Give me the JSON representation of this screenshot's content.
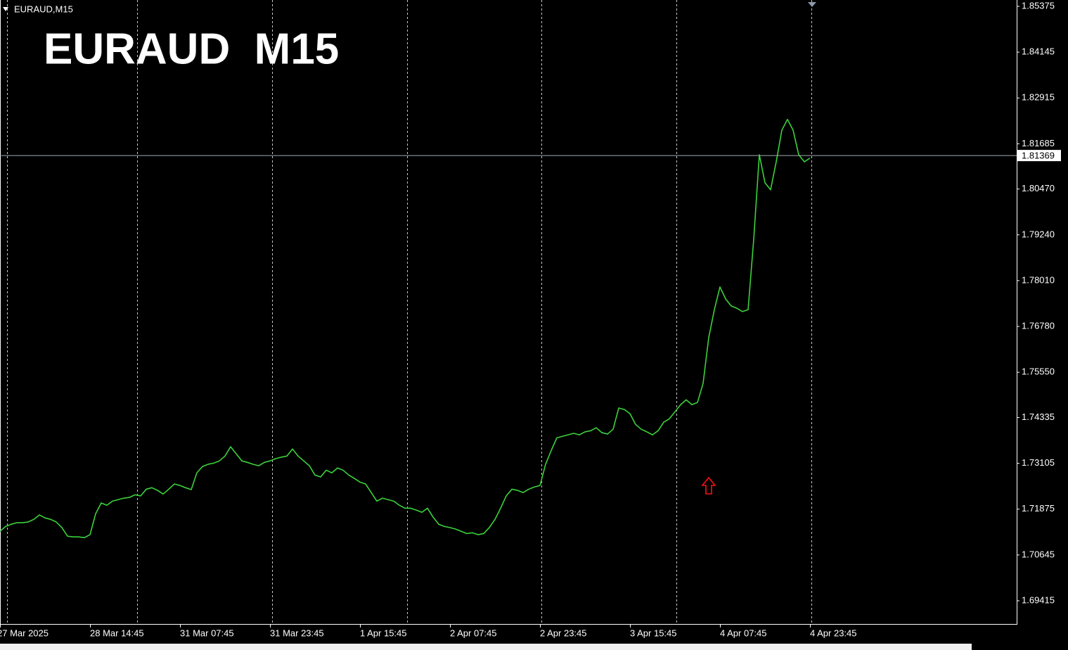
{
  "chart_data": {
    "type": "line",
    "symbol_label": "EURAUD,M15",
    "title": "EURAUD  M15",
    "color": "#3bd13b",
    "title_color": "#4cf01a",
    "ylim": [
      1.68792,
      1.85545
    ],
    "yticks": [
      1.85375,
      1.84145,
      1.82915,
      1.81685,
      {
        "value": 1.8047,
        "label": "1.80470"
      },
      {
        "value": 1.7924,
        "label": "1.79240"
      },
      {
        "value": 1.7801,
        "label": "1.78010"
      },
      {
        "value": 1.7678,
        "label": "1.76780"
      },
      {
        "value": 1.7555,
        "label": "1.75550"
      },
      1.74335,
      1.73105,
      1.71875,
      1.70645,
      1.69415
    ],
    "current_price": 1.81369,
    "categories": [
      "27 Mar 2025",
      null,
      null,
      null,
      null,
      null,
      null,
      null,
      null,
      null,
      null,
      null,
      null,
      null,
      null,
      null,
      "28 Mar 14:45",
      null,
      null,
      null,
      null,
      null,
      null,
      null,
      null,
      null,
      null,
      null,
      null,
      null,
      null,
      null,
      "31 Mar 07:45",
      null,
      null,
      null,
      null,
      null,
      null,
      null,
      null,
      null,
      null,
      null,
      null,
      null,
      null,
      null,
      "31 Mar 23:45",
      null,
      null,
      null,
      null,
      null,
      null,
      null,
      null,
      null,
      null,
      null,
      null,
      null,
      null,
      null,
      "1 Apr 15:45",
      null,
      null,
      null,
      null,
      null,
      null,
      null,
      null,
      null,
      null,
      null,
      null,
      null,
      null,
      null,
      "2 Apr 07:45",
      null,
      null,
      null,
      null,
      null,
      null,
      null,
      null,
      null,
      null,
      null,
      null,
      null,
      null,
      null,
      "2 Apr 23:45",
      null,
      null,
      null,
      null,
      null,
      null,
      null,
      null,
      null,
      null,
      null,
      null,
      null,
      null,
      null,
      "3 Apr 15:45",
      null,
      null,
      null,
      null,
      null,
      null,
      null,
      null,
      null,
      null,
      null,
      null,
      null,
      null,
      null,
      "4 Apr 07:45",
      null,
      null,
      null,
      null,
      null,
      null,
      null,
      null,
      null,
      null,
      null,
      null,
      null,
      null,
      null,
      "4 Apr 23:45"
    ],
    "values": [
      1.7128,
      1.7141,
      1.7147,
      1.7151,
      1.7151,
      1.7153,
      1.716,
      1.7172,
      1.7164,
      1.716,
      1.7153,
      1.7138,
      1.7115,
      1.7113,
      1.7113,
      1.7111,
      1.7119,
      1.7175,
      1.7204,
      1.7198,
      1.7209,
      1.7213,
      1.7217,
      1.7219,
      1.7226,
      1.7223,
      1.7241,
      1.7245,
      1.7238,
      1.7228,
      1.7241,
      1.7255,
      1.7251,
      1.7245,
      1.724,
      1.7285,
      1.7302,
      1.7308,
      1.7311,
      1.7317,
      1.733,
      1.7355,
      1.7336,
      1.7317,
      1.7313,
      1.7308,
      1.7304,
      1.7313,
      1.7317,
      1.7323,
      1.7327,
      1.733,
      1.7349,
      1.733,
      1.7317,
      1.7304,
      1.7279,
      1.7274,
      1.7292,
      1.7285,
      1.7298,
      1.7292,
      1.7279,
      1.727,
      1.726,
      1.7255,
      1.7232,
      1.7209,
      1.7217,
      1.7213,
      1.7209,
      1.7198,
      1.719,
      1.719,
      1.7185,
      1.7179,
      1.719,
      1.7166,
      1.7147,
      1.7141,
      1.7138,
      1.7134,
      1.7128,
      1.7122,
      1.7124,
      1.7119,
      1.7122,
      1.7138,
      1.716,
      1.719,
      1.7223,
      1.7241,
      1.7238,
      1.7232,
      1.7241,
      1.7247,
      1.7251,
      1.7308,
      1.7345,
      1.7379,
      1.7383,
      1.7387,
      1.7391,
      1.7387,
      1.7395,
      1.7398,
      1.7406,
      1.7393,
      1.7389,
      1.7402,
      1.7459,
      1.7455,
      1.7444,
      1.7415,
      1.7402,
      1.7395,
      1.7387,
      1.7398,
      1.7421,
      1.743,
      1.7449,
      1.7468,
      1.7481,
      1.7468,
      1.7474,
      1.7525,
      1.7648,
      1.7723,
      1.7784,
      1.7752,
      1.7733,
      1.7727,
      1.7718,
      1.7723,
      1.7912,
      1.8139,
      1.8064,
      1.8045,
      1.812,
      1.8205,
      1.8234,
      1.8205,
      1.8139,
      1.812,
      1.813
    ]
  }
}
